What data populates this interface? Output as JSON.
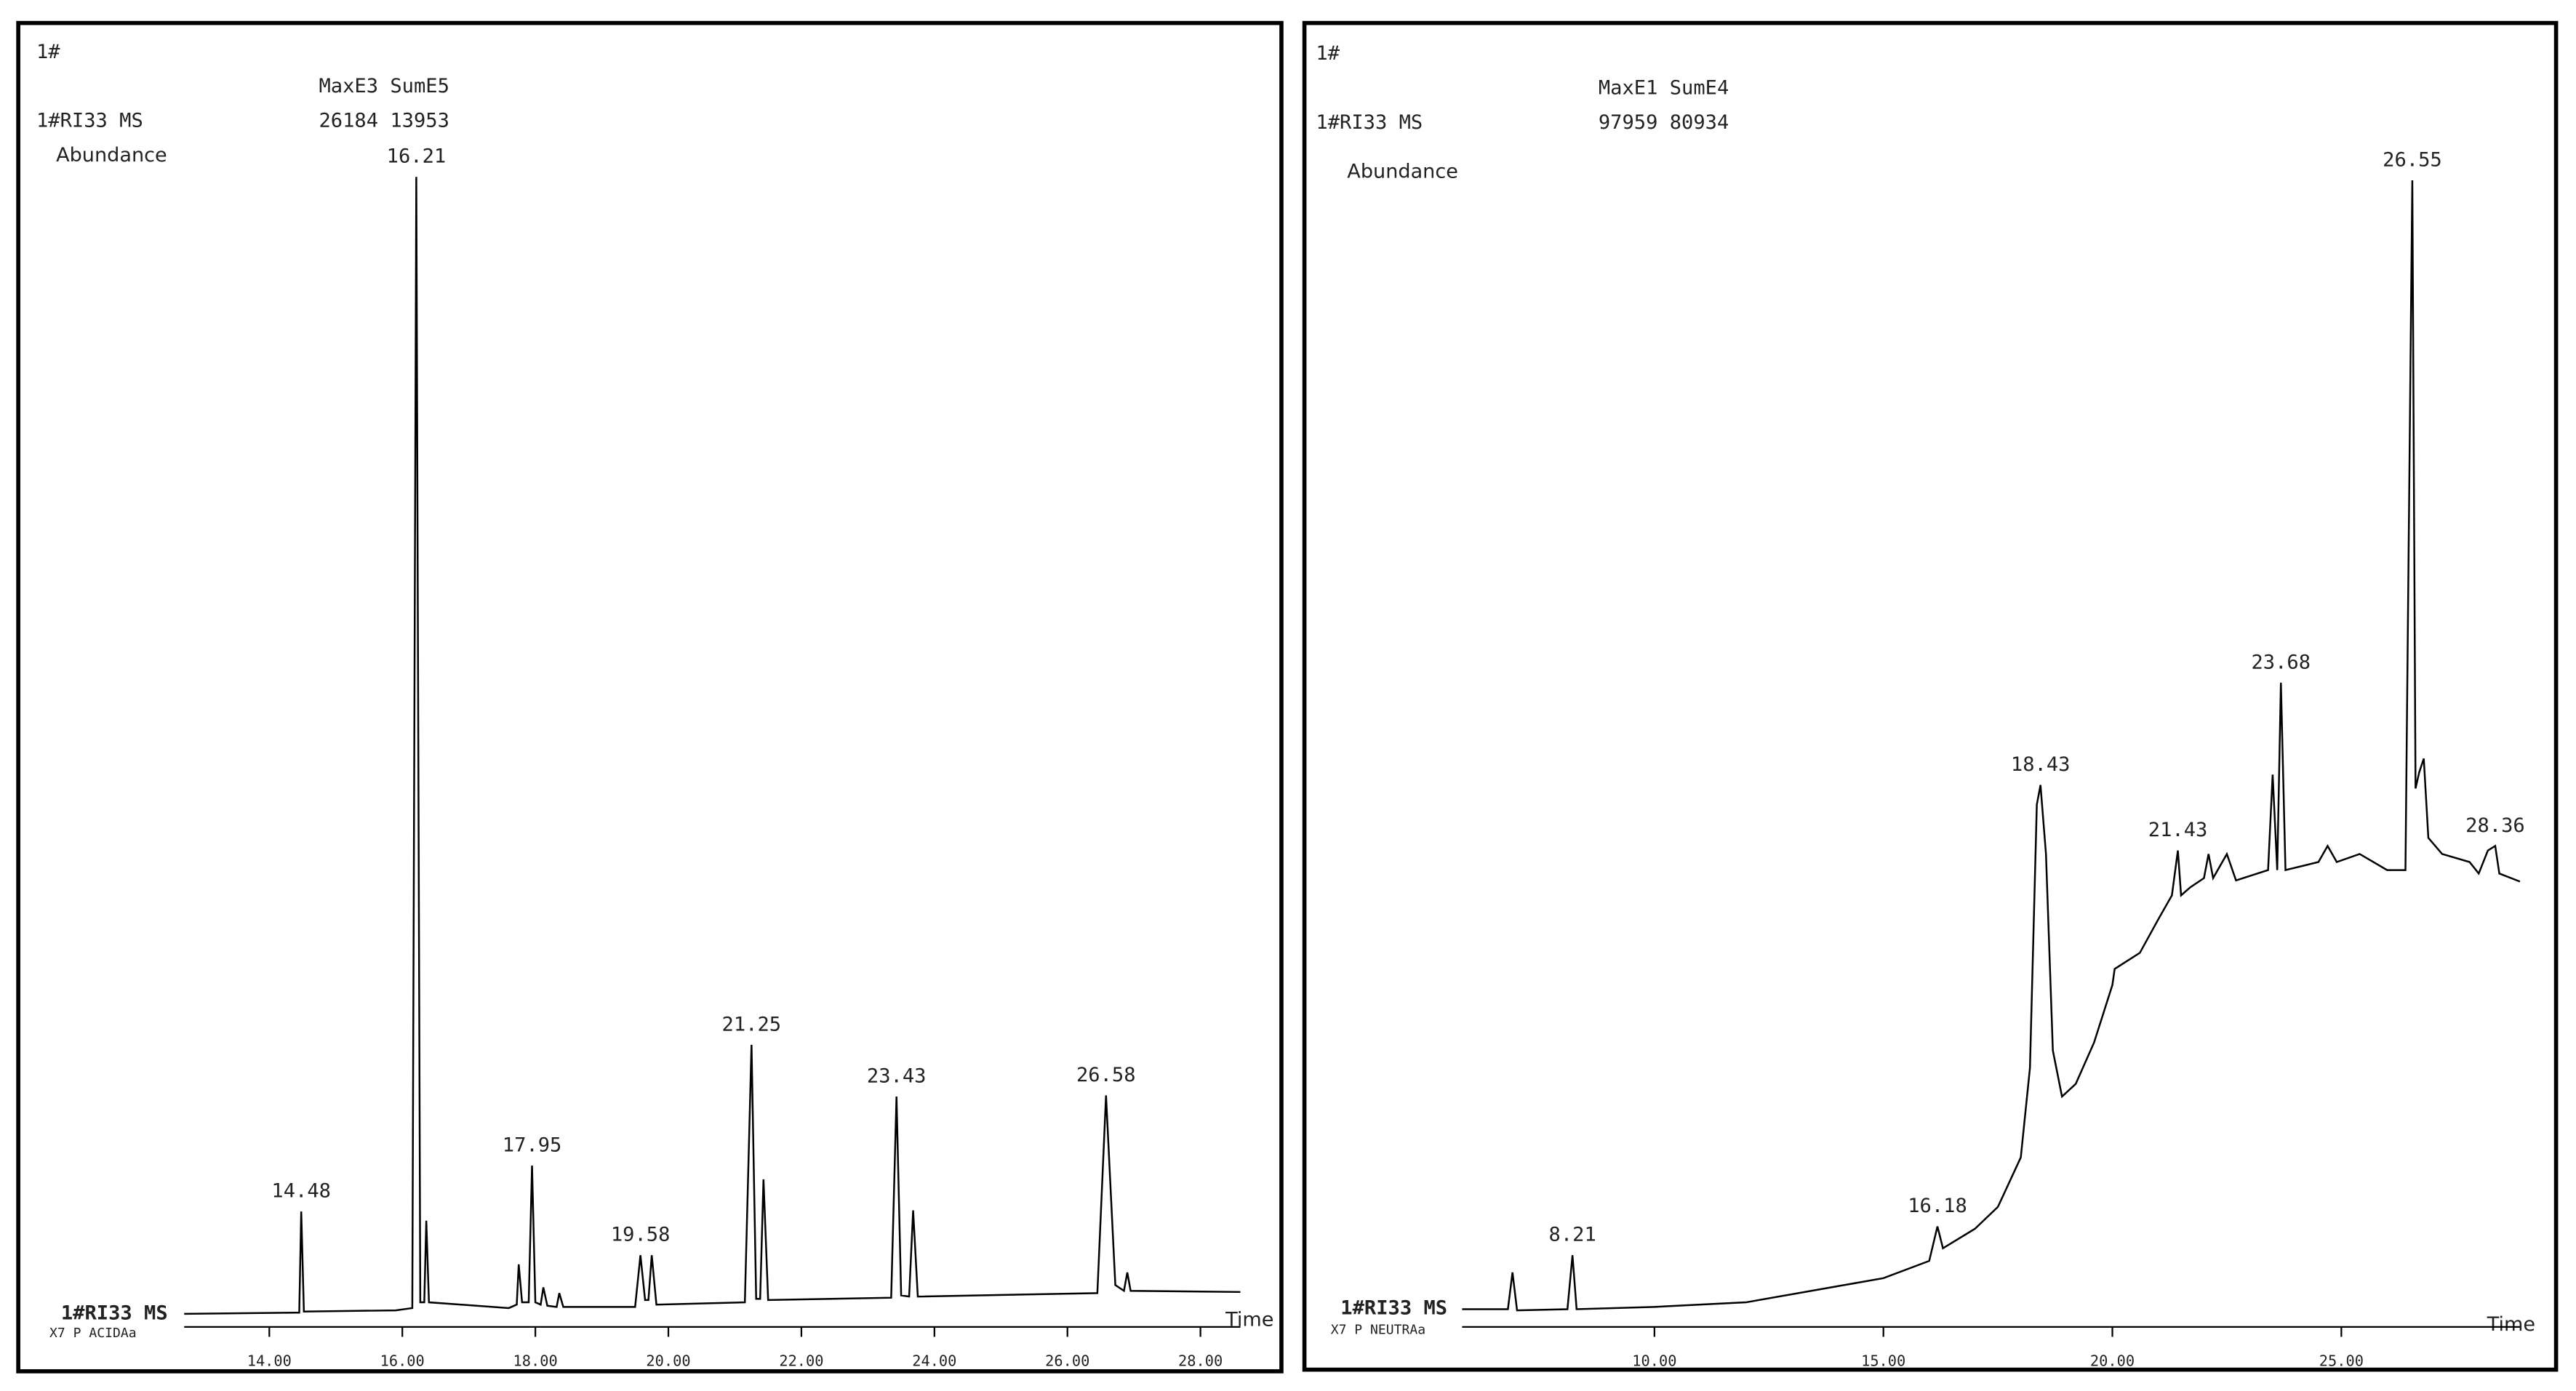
{
  "chart_data": [
    {
      "type": "line",
      "label_top": "1#",
      "max_sum_label": "MaxE3 SumE5",
      "sample": "1#RI33 MS",
      "max_sum_values": "26184 13953",
      "ylabel": "Abundance",
      "trace_label": "1#RI33 MS",
      "method": "X7 P ACIDAa",
      "xlabel": "Time",
      "color": "#000000",
      "xlim": [
        12.72,
        28.6
      ],
      "ylim": [
        0,
        100
      ],
      "xticks": [
        {
          "value": 14,
          "label": "14.00"
        },
        {
          "value": 16,
          "label": "16.00"
        },
        {
          "value": 18,
          "label": "18.00"
        },
        {
          "value": 20,
          "label": "20.00"
        },
        {
          "value": 22,
          "label": "22.00"
        },
        {
          "value": 24,
          "label": "24.00"
        },
        {
          "value": 26,
          "label": "26.00"
        },
        {
          "value": 28,
          "label": "28.00"
        }
      ],
      "x": [
        12.72,
        14.4,
        14.45,
        14.48,
        14.52,
        15.9,
        16.15,
        16.21,
        16.27,
        16.33,
        16.36,
        16.4,
        17.6,
        17.72,
        17.75,
        17.8,
        17.9,
        17.95,
        18.0,
        18.08,
        18.12,
        18.18,
        18.32,
        18.36,
        18.42,
        19.5,
        19.58,
        19.65,
        19.7,
        19.75,
        19.82,
        21.15,
        21.25,
        21.32,
        21.38,
        21.43,
        21.5,
        23.35,
        23.43,
        23.5,
        23.62,
        23.68,
        23.75,
        26.45,
        26.58,
        26.72,
        26.85,
        26.9,
        26.95,
        28.6
      ],
      "values": [
        0,
        0.1,
        0.1,
        8.9,
        0.2,
        0.3,
        0.5,
        98.9,
        1,
        1,
        8.1,
        1,
        0.5,
        0.8,
        4.3,
        1,
        1,
        12.9,
        1,
        0.8,
        2.3,
        0.7,
        0.6,
        1.8,
        0.6,
        0.6,
        5.1,
        1.2,
        1.2,
        5.1,
        0.8,
        1,
        23.4,
        1.3,
        1.3,
        11.7,
        1.2,
        1.4,
        18.9,
        1.6,
        1.5,
        9,
        1.5,
        1.8,
        19,
        2.5,
        2,
        3.6,
        2,
        1.9
      ],
      "peaks": [
        14.48,
        16.21,
        17.95,
        19.58,
        21.25,
        23.43,
        26.58
      ]
    },
    {
      "type": "line",
      "label_top": "1#",
      "max_sum_label": "MaxE1 SumE4",
      "sample": "1#RI33 MS",
      "max_sum_values": "97959 80934",
      "ylabel": "Abundance",
      "trace_label": "1#RI33 MS",
      "method": "X7 P NEUTRAa",
      "xlabel": "Time",
      "color": "#000000",
      "xlim": [
        5.8,
        28.9
      ],
      "ylim": [
        0,
        100
      ],
      "xticks": [
        {
          "value": 10,
          "label": "10.00"
        },
        {
          "value": 15,
          "label": "15.00"
        },
        {
          "value": 20,
          "label": "20.00"
        },
        {
          "value": 25,
          "label": "25.00"
        }
      ],
      "x": [
        5.8,
        6.8,
        6.9,
        7.0,
        8.1,
        8.21,
        8.3,
        10,
        12,
        14,
        15,
        16.0,
        16.18,
        16.3,
        17,
        17.5,
        18.0,
        18.2,
        18.35,
        18.43,
        18.55,
        18.7,
        18.9,
        19.2,
        19.6,
        20.0,
        20.05,
        20.6,
        21.0,
        21.3,
        21.43,
        21.5,
        21.7,
        22.0,
        22.1,
        22.2,
        22.5,
        22.7,
        23.4,
        23.5,
        23.6,
        23.68,
        23.78,
        24.5,
        24.7,
        24.9,
        25.4,
        26.0,
        26.4,
        26.55,
        26.62,
        26.7,
        26.8,
        26.9,
        27.2,
        27.8,
        28.0,
        28.2,
        28.36,
        28.45,
        28.9
      ],
      "values": [
        0.4,
        0.4,
        3.6,
        0.3,
        0.4,
        5.1,
        0.4,
        0.6,
        1,
        2.4,
        3.1,
        4.6,
        7.6,
        5.7,
        7.4,
        9.3,
        13.6,
        21.4,
        44.3,
        46,
        40,
        22.9,
        18.9,
        20,
        23.6,
        28.6,
        30,
        31.4,
        34.3,
        36.4,
        40.3,
        36.4,
        37.1,
        37.9,
        40,
        37.9,
        40,
        37.7,
        38.6,
        46.9,
        38.6,
        54.9,
        38.6,
        39.3,
        40.7,
        39.3,
        40,
        38.6,
        38.6,
        98.6,
        45.7,
        47.1,
        48.3,
        41.4,
        40,
        39.3,
        38.3,
        40.3,
        40.7,
        38.3,
        37.6
      ],
      "peaks": [
        8.21,
        16.18,
        18.43,
        21.43,
        23.68,
        26.55,
        28.36
      ]
    }
  ]
}
